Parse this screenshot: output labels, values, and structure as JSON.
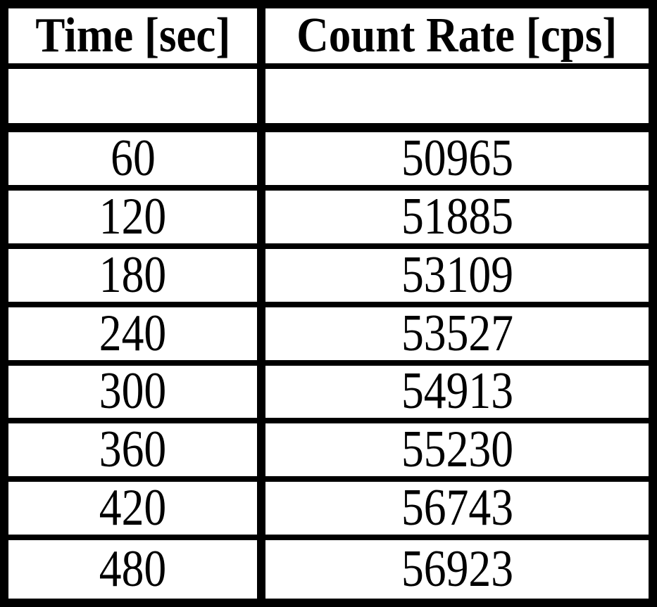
{
  "colors": {
    "border": "#000000",
    "background": "#ffffff",
    "text": "#000000"
  },
  "chart_data": {
    "type": "table",
    "title": "",
    "columns": [
      "Time [sec]",
      "Count Rate [cps]"
    ],
    "xlabel": "Time [sec]",
    "ylabel": "Count Rate [cps]",
    "rows": [
      [
        "60",
        "50965"
      ],
      [
        "120",
        "51885"
      ],
      [
        "180",
        "53109"
      ],
      [
        "240",
        "53527"
      ],
      [
        "300",
        "54913"
      ],
      [
        "360",
        "55230"
      ],
      [
        "420",
        "56743"
      ],
      [
        "480",
        "56923"
      ]
    ],
    "x": [
      60,
      120,
      180,
      240,
      300,
      360,
      420,
      480
    ],
    "values": [
      50965,
      51885,
      53109,
      53527,
      54913,
      55230,
      56743,
      56923
    ]
  }
}
